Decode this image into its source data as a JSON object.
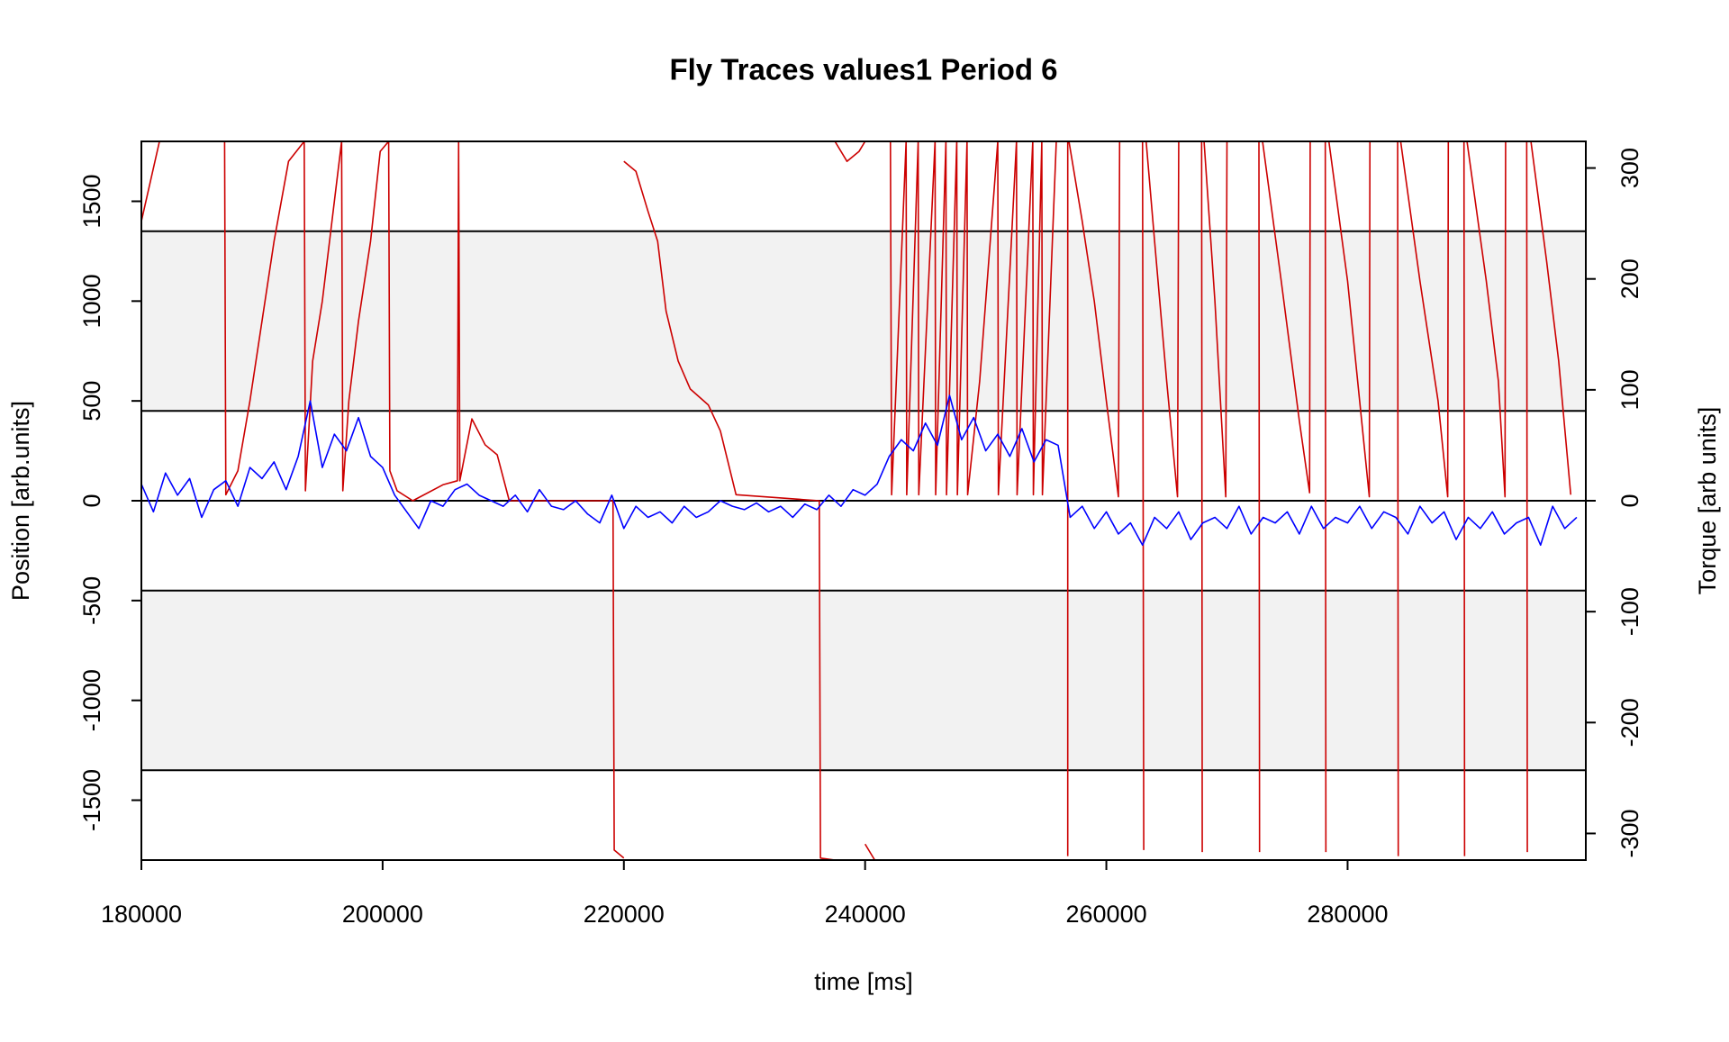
{
  "chart_data": {
    "type": "line",
    "title": "Fly Traces values1 Period 6",
    "xlabel": "time [ms]",
    "ylabel": "Position [arb.units]",
    "y2label": "Torque [arb units]",
    "xlim": [
      180000,
      299750
    ],
    "xticks": [
      180000,
      200000,
      220000,
      240000,
      260000,
      280000
    ],
    "ylim": [
      -1800,
      1800
    ],
    "yticks": [
      -1500,
      -1000,
      -500,
      0,
      500,
      1000,
      1500
    ],
    "y2lim": [
      -324,
      324
    ],
    "y2ticks": [
      -300,
      -200,
      -100,
      0,
      100,
      200,
      300
    ],
    "bands": [
      [
        450,
        1350
      ],
      [
        -1350,
        -450
      ]
    ],
    "band_color": "#f2f2f2",
    "hlines": [
      -1350,
      -450,
      0,
      450,
      1350
    ],
    "series": [
      {
        "color": "#cc0000",
        "axis": "y",
        "x": [
          180000,
          181500,
          186900,
          187000,
          188000,
          189000,
          190000,
          191000,
          192200,
          193500,
          193600,
          194200,
          195000,
          196000,
          196600,
          196700,
          197200,
          198000,
          199000,
          199800,
          200500,
          200600,
          201200,
          202500,
          205000,
          206200,
          206300,
          206400,
          207400,
          208500,
          209500,
          210500,
          219100,
          219200,
          220000,
          null,
          220000,
          221000,
          222000,
          222800,
          223500,
          224500,
          225500,
          227000,
          228000,
          229300,
          236200,
          236300,
          237500,
          null,
          237500,
          238500,
          239500,
          240000,
          null,
          240000,
          240800,
          null,
          242100,
          242200,
          243400,
          243450,
          244400,
          244450,
          245800,
          245850,
          246700,
          246750,
          247600,
          247650,
          248450,
          248500,
          249500,
          251000,
          251050,
          252550,
          252600,
          253900,
          253950,
          254650,
          254700,
          255850,
          256800,
          256800,
          null,
          256900,
          258000,
          259000,
          260000,
          261000,
          261100,
          263000,
          263100,
          null,
          263300,
          264000,
          265000,
          265900,
          266000,
          267900,
          267950,
          null,
          268100,
          269000,
          269900,
          270000,
          272650,
          272700,
          null,
          272950,
          274500,
          276000,
          276850,
          276900,
          278150,
          278200,
          null,
          278450,
          280000,
          281000,
          281800,
          281850,
          284150,
          284200,
          null,
          284400,
          286000,
          287500,
          288300,
          288350,
          289650,
          289700,
          null,
          289900,
          291500,
          292500,
          293050,
          293100,
          294850,
          294900,
          null,
          295200,
          296500,
          297500,
          298500
        ],
        "values": [
          1400,
          1800,
          1800,
          30,
          150,
          500,
          900,
          1300,
          1700,
          1800,
          50,
          700,
          1000,
          1500,
          1800,
          50,
          500,
          900,
          1300,
          1750,
          1800,
          150,
          50,
          0,
          80,
          100,
          1800,
          100,
          410,
          280,
          230,
          0,
          0,
          -1750,
          -1790,
          null,
          1700,
          1650,
          1450,
          1300,
          950,
          700,
          560,
          480,
          350,
          30,
          0,
          -1790,
          -1800,
          null,
          1800,
          1700,
          1750,
          1800,
          null,
          -1720,
          -1800,
          null,
          1800,
          30,
          1800,
          30,
          1800,
          30,
          1800,
          30,
          1800,
          30,
          1800,
          30,
          1800,
          30,
          600,
          1800,
          30,
          1800,
          30,
          1800,
          30,
          1800,
          30,
          1800,
          1800,
          -1780,
          null,
          1800,
          1400,
          1000,
          500,
          20,
          1800,
          1800,
          -1750,
          null,
          1800,
          1300,
          600,
          20,
          1800,
          1800,
          -1760,
          null,
          1800,
          1000,
          20,
          1800,
          1800,
          -1760,
          null,
          1800,
          1100,
          400,
          40,
          1800,
          1800,
          -1760,
          null,
          1800,
          1100,
          500,
          20,
          1800,
          1800,
          -1780,
          null,
          1800,
          1100,
          500,
          20,
          1800,
          1800,
          -1780,
          null,
          1800,
          1100,
          600,
          20,
          1800,
          1800,
          -1760,
          null,
          1800,
          1200,
          700,
          30
        ]
      },
      {
        "color": "#0000ff",
        "axis": "y2",
        "x": [
          180000,
          181000,
          182000,
          183000,
          184000,
          185000,
          186000,
          187000,
          188000,
          189000,
          190000,
          191000,
          192000,
          193000,
          194000,
          195000,
          196000,
          197000,
          198000,
          199000,
          200000,
          201000,
          202000,
          203000,
          204000,
          205000,
          206000,
          207000,
          208000,
          209000,
          210000,
          211000,
          212000,
          213000,
          214000,
          215000,
          216000,
          217000,
          218000,
          219000,
          220000,
          221000,
          222000,
          223000,
          224000,
          225000,
          226000,
          227000,
          228000,
          229000,
          230000,
          231000,
          232000,
          233000,
          234000,
          235000,
          236000,
          237000,
          238000,
          239000,
          240000,
          241000,
          242000,
          243000,
          244000,
          245000,
          246000,
          247000,
          248000,
          249000,
          250000,
          251000,
          252000,
          253000,
          254000,
          255000,
          256000,
          257000,
          258000,
          259000,
          260000,
          261000,
          262000,
          263000,
          264000,
          265000,
          266000,
          267000,
          268000,
          269000,
          270000,
          271000,
          272000,
          273000,
          274000,
          275000,
          276000,
          277000,
          278000,
          279000,
          280000,
          281000,
          282000,
          283000,
          284000,
          285000,
          286000,
          287000,
          288000,
          289000,
          290000,
          291000,
          292000,
          293000,
          294000,
          295000,
          296000,
          297000,
          298000,
          299000
        ],
        "values": [
          15,
          -10,
          25,
          5,
          20,
          -15,
          10,
          18,
          -5,
          30,
          20,
          35,
          10,
          40,
          90,
          30,
          60,
          45,
          75,
          40,
          30,
          5,
          -10,
          -25,
          0,
          -5,
          10,
          15,
          5,
          0,
          -5,
          5,
          -10,
          10,
          -5,
          -8,
          0,
          -12,
          -20,
          5,
          -25,
          -5,
          -15,
          -10,
          -20,
          -5,
          -15,
          -10,
          0,
          -5,
          -8,
          -2,
          -10,
          -5,
          -15,
          -3,
          -8,
          5,
          -5,
          10,
          5,
          15,
          40,
          55,
          45,
          70,
          50,
          95,
          55,
          75,
          45,
          60,
          40,
          65,
          35,
          55,
          50,
          -15,
          -5,
          -25,
          -10,
          -30,
          -20,
          -40,
          -15,
          -25,
          -10,
          -35,
          -20,
          -15,
          -25,
          -5,
          -30,
          -15,
          -20,
          -10,
          -30,
          -5,
          -25,
          -15,
          -20,
          -5,
          -25,
          -10,
          -15,
          -30,
          -5,
          -20,
          -10,
          -35,
          -15,
          -25,
          -10,
          -30,
          -20,
          -15,
          -40,
          -5,
          -25,
          -15
        ]
      }
    ]
  }
}
